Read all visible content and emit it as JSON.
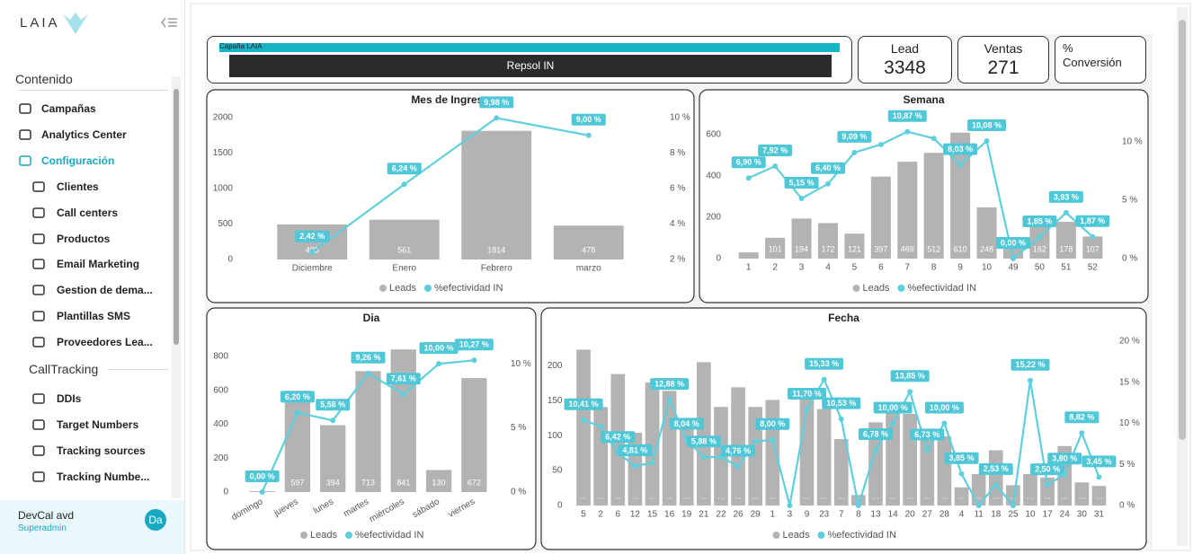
{
  "sidebar": {
    "logo": "LAIA",
    "heading_1": "Contenido",
    "menu": [
      "Campañas",
      "Analytics Center",
      "Configuración"
    ],
    "config_items": [
      "Clientes",
      "Call centers",
      "Productos",
      "Email Marketing",
      "Gestion de dema...",
      "Plantillas SMS",
      "Proveedores Lea..."
    ],
    "heading_2": "CallTracking",
    "calltracking_items": [
      "DDIs",
      "Target Numbers",
      "Tracking sources",
      "Tracking Numbe..."
    ],
    "user": {
      "name": "DevCal avd",
      "role": "Superadmin",
      "initials": "Da"
    }
  },
  "slicer": {
    "title": "Capaña LAIA",
    "selected": "Repsol IN"
  },
  "kpis": [
    {
      "label": "Lead",
      "value": 3348
    },
    {
      "label": "Ventas",
      "value": 271
    },
    {
      "label": "% Conversión"
    }
  ],
  "chart_data": [
    {
      "type": "combo",
      "title": "Mes de Ingreso",
      "categories": [
        "Diciembre",
        "Enero",
        "Febrero",
        "marzo"
      ],
      "series": [
        {
          "name": "Leads",
          "type": "bar",
          "color": "#b3b3b3",
          "values": [
            495,
            561,
            1814,
            478
          ]
        },
        {
          "name": "%efectividad IN",
          "type": "line",
          "axis": "y2",
          "color": "#5ecfdc",
          "values": [
            2.42,
            6.24,
            9.98,
            9.0
          ],
          "value_labels": [
            "2,42 %",
            "6,24 %",
            "9,98 %",
            "9,00 %"
          ]
        }
      ],
      "ylim": [
        0,
        2000
      ],
      "yticks": [
        0,
        500,
        1000,
        1500,
        2000
      ],
      "y2lim": [
        2,
        10
      ],
      "y2ticks": [
        {
          "value": 2,
          "label": "2 %"
        },
        {
          "value": 4,
          "label": "4 %"
        },
        {
          "value": 6,
          "label": "6 %"
        },
        {
          "value": 8,
          "label": "8 %"
        },
        {
          "value": 10,
          "label": "10 %"
        }
      ]
    },
    {
      "type": "combo",
      "title": "Semana",
      "categories": [
        "1",
        "2",
        "3",
        "4",
        "5",
        "6",
        "7",
        "8",
        "9",
        "10",
        "49",
        "50",
        "51",
        "52"
      ],
      "series": [
        {
          "name": "Leads",
          "type": "bar",
          "color": "#b3b3b3",
          "values": [
            30,
            101,
            194,
            172,
            121,
            397,
            469,
            512,
            610,
            248,
            55,
            162,
            178,
            107
          ],
          "value_labels": [
            null,
            "101",
            "194",
            "172",
            "121",
            "397",
            "469",
            "512",
            "610",
            "248",
            null,
            "162",
            "178",
            "107"
          ]
        },
        {
          "name": "%efectividad IN",
          "type": "line",
          "axis": "y2",
          "color": "#5ecfdc",
          "values": [
            6.9,
            7.92,
            5.15,
            6.4,
            9.09,
            9.77,
            10.87,
            10.3,
            8.03,
            10.08,
            0.0,
            1.85,
            3.93,
            1.87
          ],
          "value_labels": [
            "6,90 %",
            "7,92 %",
            "5,15 %",
            "6,40 %",
            "9,09 %",
            null,
            "10,87 %",
            null,
            "8,03 %",
            "10,08 %",
            "0,00 %",
            "1,85 %",
            "3,93 %",
            "1,87 %"
          ]
        }
      ],
      "ylim": [
        0,
        650
      ],
      "yticks": [
        0,
        200,
        400,
        600
      ],
      "y2lim": [
        0,
        11.5
      ],
      "y2ticks": [
        {
          "value": 0,
          "label": "0 %"
        },
        {
          "value": 5,
          "label": "5 %"
        },
        {
          "value": 10,
          "label": "10 %"
        }
      ]
    },
    {
      "type": "combo",
      "title": "Dia",
      "categories": [
        "domingo",
        "jueves",
        "lunes",
        "martes",
        "miércoles",
        "sábado",
        "viernes"
      ],
      "series": [
        {
          "name": "Leads",
          "type": "bar",
          "color": "#b3b3b3",
          "values": [
            5,
            597,
            394,
            713,
            841,
            130,
            672
          ],
          "value_labels": [
            null,
            "597",
            "394",
            "713",
            "841",
            "130",
            "672"
          ]
        },
        {
          "name": "%efectividad IN",
          "type": "line",
          "axis": "y2",
          "color": "#5ecfdc",
          "values": [
            0.0,
            6.2,
            5.58,
            9.26,
            7.61,
            10.0,
            10.27
          ],
          "value_labels": [
            "0,00 %",
            "6,20 %",
            "5,58 %",
            "9,26 %",
            "7,61 %",
            "10,00 %",
            "10,27 %"
          ]
        }
      ],
      "ylim": [
        0,
        900
      ],
      "yticks": [
        0,
        200,
        400,
        600,
        800
      ],
      "y2lim": [
        0,
        11.9
      ],
      "y2ticks": [
        {
          "value": 0,
          "label": "0 %"
        },
        {
          "value": 5,
          "label": "5 %"
        },
        {
          "value": 10,
          "label": "10 %"
        }
      ]
    },
    {
      "type": "combo",
      "title": "Fecha",
      "categories": [
        "5",
        "2",
        "6",
        "12",
        "15",
        "16",
        "19",
        "21",
        "22",
        "26",
        "29",
        "1",
        "3",
        "9",
        "23",
        "7",
        "8",
        "13",
        "14",
        "20",
        "27",
        "28",
        "4",
        "11",
        "18",
        "25",
        "10",
        "17",
        "24",
        "30",
        "31"
      ],
      "series": [
        {
          "name": "Leads",
          "type": "bar",
          "color": "#b3b3b3",
          "values": [
            223,
            141,
            188,
            104,
            176,
            164,
            114,
            205,
            141,
            169,
            141,
            151,
            0,
            164,
            138,
            95,
            15,
            119,
            141,
            131,
            101,
            99,
            26,
            45,
            79,
            29,
            45,
            40,
            85,
            33,
            28
          ],
          "value_labels": [
            "...",
            "...",
            "...",
            "...",
            "...",
            "...",
            "...",
            "...",
            "...",
            "...",
            "...",
            "...",
            null,
            "...",
            "...",
            "...",
            "...",
            "...",
            "...",
            "...",
            "...",
            "...",
            "...",
            "...",
            "...",
            "...",
            "...",
            "...",
            "...",
            "...",
            "..."
          ]
        },
        {
          "name": "%efectividad IN",
          "type": "line",
          "axis": "y2",
          "color": "#5ecfdc",
          "values": [
            10.41,
            9.6,
            6.42,
            4.81,
            5.2,
            12.88,
            8.04,
            5.88,
            5.9,
            4.76,
            7.8,
            8.0,
            0,
            11.7,
            15.33,
            10.53,
            0,
            6.78,
            10.0,
            13.85,
            6.73,
            10.0,
            3.85,
            0,
            2.53,
            0,
            15.22,
            2.5,
            3.8,
            8.82,
            3.45
          ],
          "value_labels": [
            "10,41 %",
            null,
            "6,42 %",
            "4,81 %",
            null,
            "12,88 %",
            "8,04 %",
            "5,88 %",
            null,
            "4,76 %",
            null,
            "8,00 %",
            null,
            "11,70 %",
            "15,33 %",
            "10,53 %",
            null,
            "6,78 %",
            "10,00 %",
            "13,85 %",
            "6,73 %",
            "10,00 %",
            "3,85 %",
            null,
            "2,53 %",
            null,
            "15,22 %",
            "2,50 %",
            "3,80 %",
            "8,82 %",
            "3,45 %"
          ]
        }
      ],
      "ylim": [
        0,
        235
      ],
      "yticks": [
        0,
        50,
        100,
        150,
        200
      ],
      "y2lim": [
        0,
        20
      ],
      "y2ticks": [
        {
          "value": 0,
          "label": "0 %"
        },
        {
          "value": 5,
          "label": "5 %"
        },
        {
          "value": 10,
          "label": "10 %"
        },
        {
          "value": 15,
          "label": "15 %"
        },
        {
          "value": 20,
          "label": "20 %"
        }
      ]
    }
  ]
}
